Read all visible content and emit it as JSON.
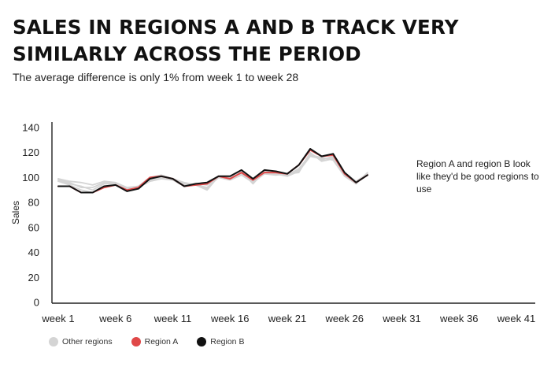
{
  "title": "SALES IN REGIONS A AND B TRACK VERY SIMILARLY ACROSS THE PERIOD",
  "subtitle": "The average difference is only 1% from week 1 to week 28",
  "annotation": "Region A and region B look like they'd be good regions to use",
  "chart_data": {
    "type": "line",
    "ylabel": "Sales",
    "xlabel": "",
    "ylim": [
      0,
      140
    ],
    "yticks": [
      "0",
      "20",
      "40",
      "60",
      "80",
      "100",
      "120",
      "140"
    ],
    "xlim": [
      1,
      41
    ],
    "xtick_labels": [
      "week 1",
      "week 6",
      "week 11",
      "week 16",
      "week 21",
      "week 26",
      "week 31",
      "week 36",
      "week 41"
    ],
    "grid": false,
    "legend_position": "bottom",
    "x": [
      1,
      2,
      3,
      4,
      5,
      6,
      7,
      8,
      9,
      10,
      11,
      12,
      13,
      14,
      15,
      16,
      17,
      18,
      19,
      20,
      21,
      22,
      23,
      24,
      25,
      26,
      27,
      28
    ],
    "series": [
      {
        "name": "Other regions",
        "color": "#d4d4d4",
        "values": [
          99,
          97,
          96,
          94,
          97,
          96,
          92,
          93,
          99,
          101,
          99,
          96,
          94,
          92,
          100,
          101,
          103,
          98,
          104,
          104,
          102,
          106,
          119,
          114,
          117,
          104,
          97,
          103
        ]
      },
      {
        "color": "#d4d4d4",
        "values": [
          98,
          95,
          93,
          90,
          95,
          95,
          91,
          93,
          98,
          100,
          98,
          95,
          94,
          90,
          101,
          99,
          104,
          97,
          104,
          103,
          101,
          105,
          117,
          115,
          116,
          102,
          96,
          102
        ]
      },
      {
        "color": "#d4d4d4",
        "values": [
          97,
          94,
          90,
          88,
          93,
          94,
          90,
          92,
          97,
          99,
          98,
          93,
          95,
          94,
          100,
          98,
          102,
          96,
          103,
          102,
          103,
          104,
          120,
          113,
          115,
          103,
          95,
          104
        ]
      },
      {
        "color": "#d4d4d4",
        "values": [
          99,
          96,
          92,
          92,
          96,
          95,
          90,
          93,
          100,
          102,
          99,
          94,
          95,
          91,
          101,
          100,
          105,
          95,
          105,
          103,
          102,
          107,
          118,
          116,
          114,
          101,
          95,
          103
        ]
      },
      {
        "name": "Region A",
        "color": "#e04848",
        "values": [
          93,
          93,
          88,
          88,
          92,
          94,
          90,
          92,
          100,
          101,
          99,
          93,
          94,
          95,
          101,
          99,
          104,
          98,
          104,
          104,
          103,
          110,
          122,
          117,
          118,
          103,
          96,
          102
        ]
      },
      {
        "name": "Region B",
        "color": "#111111",
        "values": [
          93,
          93,
          88,
          88,
          93,
          94,
          89,
          91,
          99,
          101,
          99,
          93,
          95,
          96,
          101,
          101,
          106,
          99,
          106,
          105,
          103,
          110,
          123,
          117,
          119,
          104,
          96,
          102
        ]
      }
    ]
  }
}
